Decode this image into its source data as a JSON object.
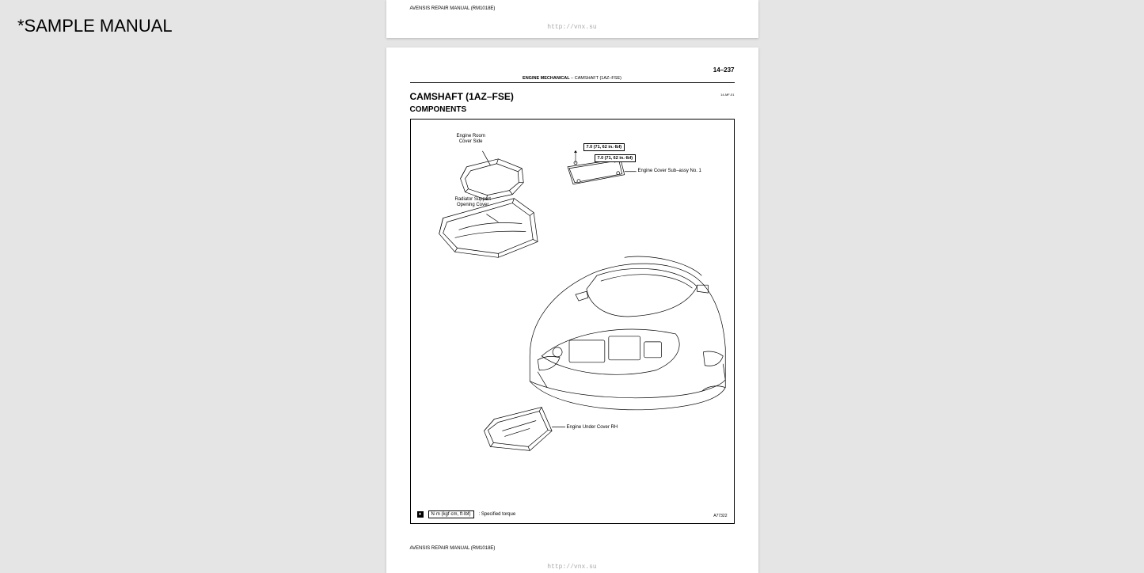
{
  "watermark": "*SAMPLE MANUAL",
  "footer": {
    "manual_ref": "AVENSIS REPAIR MANUAL   (RM1018E)",
    "url": "http://vnx.su"
  },
  "page": {
    "number": "14–237",
    "header_section": "ENGINE MECHANICAL",
    "header_sep": "   –   ",
    "header_subsection": "CAMSHAFT (1AZ–FSE)",
    "title": "CAMSHAFT (1AZ–FSE)",
    "title_code": "14-MF-01",
    "subtitle": "COMPONENTS"
  },
  "diagram": {
    "callouts": {
      "engine_room_cover": "Engine Room\nCover Side",
      "radiator_support": "Radiator Support\nOpening Cover",
      "engine_cover_sub": "Engine Cover Sub–assy No. 1",
      "engine_under_cover": "Engine Under Cover RH"
    },
    "torques": {
      "t1": "7.0 (71, 62 in.·lbf)",
      "t2": "7.0 (71, 62 in.·lbf)"
    },
    "legend": {
      "box": "N·m (kgf·cm, ft·lbf)",
      "label": ": Specified torque"
    },
    "fig_code": "A77322"
  },
  "style": {
    "bg": "#e5e5e5",
    "page_bg": "#ffffff",
    "line": "#000000",
    "url_color": "#aaaaaa"
  }
}
